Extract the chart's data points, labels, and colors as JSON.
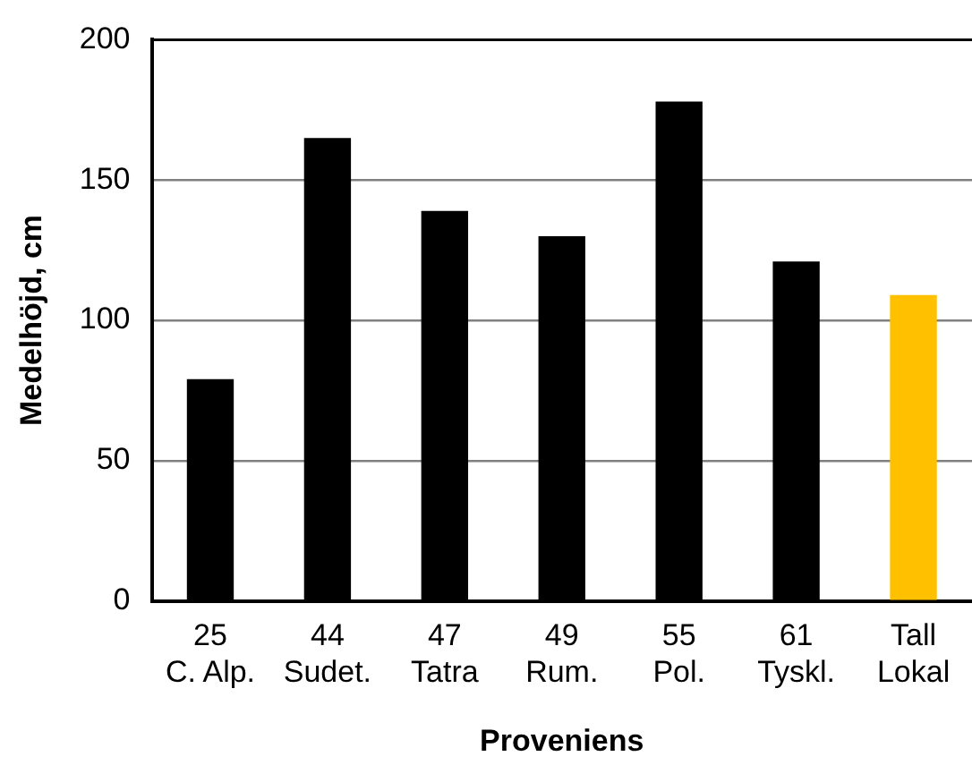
{
  "chart_data": {
    "type": "bar",
    "xlabel": "Proveniens",
    "ylabel": "Medelhöjd, cm",
    "categories": [
      "25\nC. Alp.",
      "44\nSudet.",
      "47\nTatra",
      "49\nRum.",
      "55\nPol.",
      "61\nTyskl.",
      "Tall\nLokal"
    ],
    "values": [
      79,
      165,
      139,
      130,
      178,
      121,
      109
    ],
    "colors": [
      "#000000",
      "#000000",
      "#000000",
      "#000000",
      "#000000",
      "#000000",
      "#ffc000"
    ],
    "ylim": [
      0,
      200
    ],
    "yticks": [
      0,
      50,
      100,
      150,
      200
    ],
    "grid": "y"
  }
}
